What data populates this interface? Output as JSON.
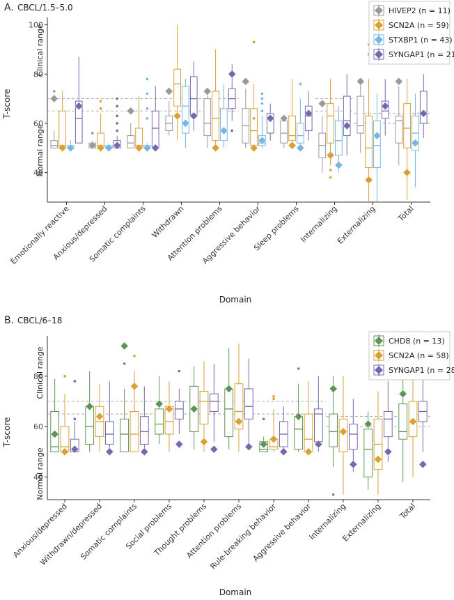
{
  "chart_data": [
    {
      "type": "box",
      "panel_label": "A.",
      "title": "CBCL/1.5–5.0",
      "xlabel": "Domain",
      "ylabel": "T-score",
      "ylim": [
        28,
        103
      ],
      "yticks": [
        40,
        60,
        80,
        100
      ],
      "thresholds": [
        {
          "label": "Clinical range",
          "y": 70,
          "segments": [
            [
              0,
              5
            ],
            [
              7,
              8
            ]
          ]
        },
        {
          "label": "",
          "y": 65,
          "segments": [
            [
              0,
              5
            ],
            [
              7,
              8
            ]
          ]
        },
        {
          "label": "",
          "y": 64,
          "segments": [
            [
              8,
              10
            ]
          ]
        },
        {
          "label": "Normal range",
          "y": 60,
          "segments": [
            [
              8,
              10
            ]
          ]
        }
      ],
      "range_labels": {
        "clinical": "Clinical range",
        "normal": "Normal range"
      },
      "legend": [
        {
          "name": "HIVEP2",
          "label": "HIVEP2 (n = 11)",
          "color": "#999999"
        },
        {
          "name": "SCN2A",
          "label": "SCN2A (n = 59)",
          "color": "#D9A033"
        },
        {
          "name": "STXBP1",
          "label": "STXBP1 (n = 43)",
          "color": "#74B6E4"
        },
        {
          "name": "SYNGAP1",
          "label": "SYNGAP1 (n = 21)",
          "color": "#7468AE"
        }
      ],
      "categories": [
        "Emotionally reactive",
        "Anxious/depressed",
        "Somatic complaints",
        "Withdrawn",
        "Attention problems",
        "Aggressive behavior",
        "Sleep problems",
        "Internalizing",
        "Externalizing",
        "Total"
      ],
      "series": [
        {
          "name": "HIVEP2",
          "color": "#999999",
          "diamonds": [
            70,
            51,
            65,
            73,
            73,
            77,
            62,
            68,
            77,
            77
          ],
          "boxes": [
            [
              50,
              50,
              51,
              53,
              57
            ],
            [
              50,
              50,
              51,
              52,
              53
            ],
            [
              50,
              50,
              52,
              55,
              60
            ],
            [
              55,
              57,
              60,
              63,
              69
            ],
            [
              50,
              55,
              60,
              70,
              73
            ],
            [
              50,
              52,
              59,
              66,
              74
            ],
            [
              50,
              52,
              56,
              61,
              62
            ],
            [
              40,
              46,
              51,
              56,
              63
            ],
            [
              48,
              56,
              59,
              71,
              77
            ],
            [
              43,
              52,
              61,
              63,
              75
            ]
          ],
          "outliers": [
            [
              0,
              73
            ],
            [
              0,
              71
            ],
            [
              1,
              56
            ]
          ]
        },
        {
          "name": "SCN2A",
          "color": "#D9A033",
          "diamonds": [
            50,
            50,
            50,
            63,
            50,
            50,
            51,
            47,
            37,
            40
          ],
          "boxes": [
            [
              50,
              50,
              51,
              65,
              73
            ],
            [
              50,
              50,
              51,
              56,
              64
            ],
            [
              50,
              50,
              51,
              58,
              71
            ],
            [
              53,
              67,
              76,
              82,
              100
            ],
            [
              50,
              53,
              62,
              73,
              90
            ],
            [
              50,
              51,
              57,
              66,
              76
            ],
            [
              50,
              53,
              55,
              63,
              78
            ],
            [
              43,
              52,
              63,
              68,
              78
            ],
            [
              28,
              42,
              50,
              63,
              78
            ],
            [
              29,
              50,
              58,
              68,
              78
            ]
          ],
          "outliers": [
            [
              1,
              69
            ],
            [
              1,
              66
            ],
            [
              5,
              93
            ],
            [
              5,
              62
            ],
            [
              7,
              41
            ],
            [
              7,
              38
            ],
            [
              8,
              92
            ],
            [
              8,
              88
            ]
          ]
        },
        {
          "name": "STXBP1",
          "color": "#74B6E4",
          "diamonds": [
            50,
            50,
            50,
            60,
            57,
            53,
            50,
            43,
            55,
            52
          ],
          "boxes": [
            [
              50,
              50,
              50,
              51,
              53
            ],
            [
              50,
              50,
              50,
              51,
              52
            ],
            [
              50,
              50,
              50,
              51,
              52
            ],
            [
              50,
              56,
              67,
              75,
              78
            ],
            [
              50,
              53,
              57,
              66,
              76
            ],
            [
              50,
              51,
              52,
              55,
              63
            ],
            [
              50,
              52,
              55,
              60,
              70
            ],
            [
              40,
              47,
              53,
              61,
              67
            ],
            [
              28,
              42,
              51,
              61,
              72
            ],
            [
              34,
              49,
              56,
              63,
              72
            ]
          ],
          "outliers": [
            [
              2,
              78
            ],
            [
              2,
              72
            ],
            [
              2,
              66
            ],
            [
              2,
              62
            ],
            [
              5,
              72
            ],
            [
              5,
              70
            ],
            [
              5,
              68
            ],
            [
              5,
              65
            ],
            [
              6,
              76
            ]
          ]
        },
        {
          "name": "SYNGAP1",
          "color": "#7468AE",
          "diamonds": [
            67,
            51,
            50,
            63,
            80,
            62,
            64,
            59,
            67,
            64
          ],
          "boxes": [
            [
              52,
              52,
              62,
              69,
              87
            ],
            [
              50,
              50,
              51,
              53,
              55
            ],
            [
              50,
              50,
              58,
              65,
              75
            ],
            [
              57,
              63,
              70,
              79,
              85
            ],
            [
              61,
              66,
              70,
              74,
              84
            ],
            [
              53,
              56,
              62,
              64,
              68
            ],
            [
              53,
              57,
              63,
              67,
              73
            ],
            [
              47,
              55,
              61,
              71,
              80
            ],
            [
              55,
              62,
              65,
              69,
              78
            ],
            [
              54,
              60,
              64,
              73,
              80
            ]
          ],
          "outliers": [
            [
              1,
              70
            ],
            [
              1,
              67
            ],
            [
              1,
              63
            ],
            [
              1,
              60
            ],
            [
              1,
              57
            ],
            [
              4,
              57
            ]
          ]
        }
      ]
    },
    {
      "type": "box",
      "panel_label": "B.",
      "title": "CBCL/6–18",
      "xlabel": "Domain",
      "ylabel": "T-score",
      "ylim": [
        31,
        96
      ],
      "yticks": [
        40,
        60,
        80
      ],
      "thresholds": [
        {
          "label": "Clinical range",
          "y": 70,
          "segments": [
            [
              0,
              8
            ]
          ]
        },
        {
          "label": "",
          "y": 65,
          "segments": [
            [
              0,
              8
            ]
          ]
        },
        {
          "label": "",
          "y": 64,
          "segments": [
            [
              8,
              11
            ]
          ]
        },
        {
          "label": "Normal range",
          "y": 60,
          "segments": [
            [
              8,
              11
            ]
          ]
        }
      ],
      "range_labels": {
        "clinical": "Clinical range",
        "normal": "Normal range"
      },
      "legend": [
        {
          "name": "CHD8",
          "label": "CHD8 (n = 13)",
          "color": "#5E9453"
        },
        {
          "name": "SCN2A",
          "label": "SCN2A (n = 58)",
          "color": "#D9A033"
        },
        {
          "name": "SYNGAP1",
          "label": "SYNGAP1 (n = 28)",
          "color": "#7468AE"
        }
      ],
      "categories": [
        "Anxious/depressed",
        "Withdrawn/depressed",
        "Somatic complaints",
        "Social problems",
        "Thought problems",
        "Attention problems",
        "Rule-breaking behavior",
        "Aggressive behavior",
        "Internalizing",
        "Externalizing",
        "Total"
      ],
      "series": [
        {
          "name": "CHD8",
          "color": "#5E9453",
          "diamonds": [
            57,
            68,
            92,
            69,
            67,
            75,
            53,
            64,
            75,
            61,
            73
          ],
          "boxes": [
            [
              50,
              50,
              52,
              66,
              79
            ],
            [
              50,
              53,
              60,
              68,
              82
            ],
            [
              50,
              50,
              57,
              63,
              75
            ],
            [
              53,
              57,
              61,
              67,
              80
            ],
            [
              51,
              58,
              67,
              76,
              84
            ],
            [
              51,
              56,
              67,
              75,
              91
            ],
            [
              50,
              50,
              51,
              54,
              56
            ],
            [
              50,
              51,
              59,
              64,
              77
            ],
            [
              44,
              52,
              58,
              65,
              80
            ],
            [
              35,
              40,
              51,
              59,
              66
            ],
            [
              38,
              55,
              58,
              69,
              80
            ]
          ],
          "outliers": [
            [
              2,
              85
            ],
            [
              7,
              83
            ],
            [
              6,
              63
            ],
            [
              8,
              33
            ]
          ]
        },
        {
          "name": "SCN2A",
          "color": "#D9A033",
          "diamonds": [
            50,
            64,
            76,
            67,
            54,
            62,
            55,
            50,
            58,
            47,
            62
          ],
          "boxes": [
            [
              50,
              50,
              52,
              60,
              73
            ],
            [
              50,
              56,
              62,
              68,
              77
            ],
            [
              50,
              50,
              57,
              66,
              82
            ],
            [
              50,
              57,
              62,
              68,
              78
            ],
            [
              50,
              61,
              70,
              74,
              86
            ],
            [
              50,
              59,
              66,
              77,
              93
            ],
            [
              50,
              51,
              52,
              55,
              67
            ],
            [
              50,
              50,
              55,
              65,
              78
            ],
            [
              33,
              50,
              58,
              63,
              80
            ],
            [
              33,
              43,
              53,
              63,
              74
            ],
            [
              40,
              56,
              62,
              70,
              81
            ]
          ],
          "outliers": [
            [
              0,
              80
            ],
            [
              2,
              88
            ],
            [
              6,
              72
            ],
            [
              6,
              71
            ]
          ]
        },
        {
          "name": "SYNGAP1",
          "color": "#7468AE",
          "diamonds": [
            51,
            50,
            50,
            53,
            51,
            52,
            50,
            53,
            45,
            50,
            45
          ],
          "boxes": [
            [
              50,
              50,
              51,
              55,
              62
            ],
            [
              50,
              53,
              57,
              62,
              78
            ],
            [
              50,
              53,
              58,
              64,
              76
            ],
            [
              57,
              63,
              67,
              70,
              75
            ],
            [
              54,
              66,
              70,
              73,
              85
            ],
            [
              52,
              63,
              68,
              75,
              87
            ],
            [
              50,
              52,
              57,
              62,
              68
            ],
            [
              50,
              54,
              65,
              67,
              80
            ],
            [
              42,
              51,
              57,
              61,
              71
            ],
            [
              46,
              56,
              63,
              66,
              78
            ],
            [
              50,
              62,
              66,
              70,
              83
            ]
          ],
          "outliers": [
            [
              0,
              78
            ],
            [
              0,
              63
            ],
            [
              3,
              82
            ]
          ]
        }
      ]
    }
  ]
}
